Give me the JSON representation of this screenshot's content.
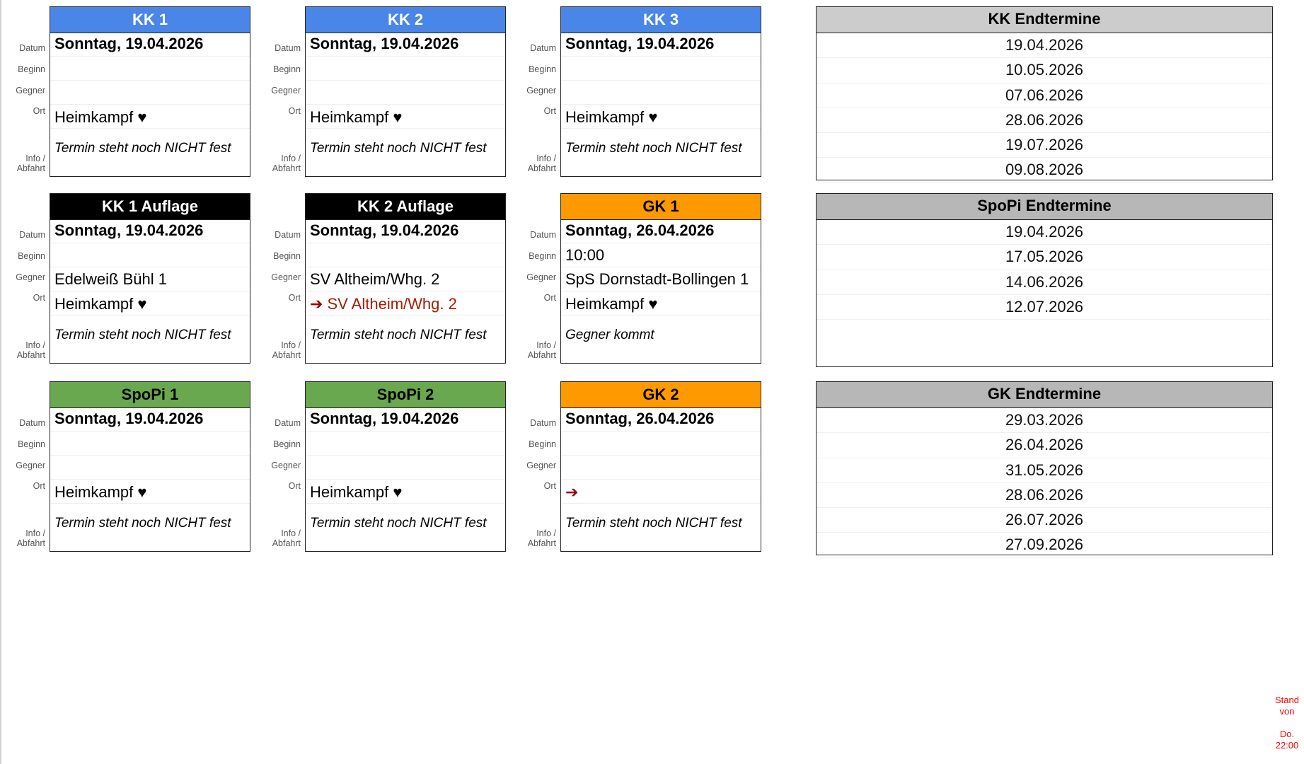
{
  "labels": {
    "datum": "Datum",
    "beginn": "Beginn",
    "gegner": "Gegner",
    "ort": "Ort",
    "info1": "Info /",
    "info2": "Abfahrt"
  },
  "colors": {
    "blue": "#4a86e8",
    "black": "#000000",
    "green": "#6aa84f",
    "orange": "#ff9900",
    "grey_light": "#cccccc",
    "grey": "#b7b7b7",
    "arrow_red": "#990000"
  },
  "cards": [
    {
      "title": "KK 1",
      "header_color": "blue",
      "datum": "Sonntag, 19.04.2026",
      "beginn": "",
      "gegner": "",
      "ort": "Heimkampf ♥",
      "ort_arrow": "",
      "info": "Termin steht noch NICHT fest"
    },
    {
      "title": "KK 2",
      "header_color": "blue",
      "datum": "Sonntag, 19.04.2026",
      "beginn": "",
      "gegner": "",
      "ort": "Heimkampf ♥",
      "ort_arrow": "",
      "info": "Termin steht noch NICHT fest"
    },
    {
      "title": "KK 3",
      "header_color": "blue",
      "datum": "Sonntag, 19.04.2026",
      "beginn": "",
      "gegner": "",
      "ort": "Heimkampf ♥",
      "ort_arrow": "",
      "info": "Termin steht noch NICHT fest"
    },
    {
      "title": "KK 1 Auflage",
      "header_color": "black",
      "datum": "Sonntag, 19.04.2026",
      "beginn": "",
      "gegner": "Edelweiß Bühl 1",
      "ort": "Heimkampf ♥",
      "ort_arrow": "",
      "info": "Termin steht noch NICHT fest"
    },
    {
      "title": "KK 2 Auflage",
      "header_color": "black",
      "datum": "Sonntag, 19.04.2026",
      "beginn": "",
      "gegner": "SV Altheim/Whg. 2",
      "ort": "SV Altheim/Whg. 2",
      "ort_arrow": "➔",
      "info": "Termin steht noch NICHT fest"
    },
    {
      "title": "GK 1",
      "header_color": "orange",
      "datum": "Sonntag, 26.04.2026",
      "beginn": "10:00",
      "gegner": "SpS Dornstadt-Bollingen 1",
      "ort": "Heimkampf ♥",
      "ort_arrow": "",
      "info": "Gegner kommt"
    },
    {
      "title": "SpoPi 1",
      "header_color": "green",
      "datum": "Sonntag, 19.04.2026",
      "beginn": "",
      "gegner": "",
      "ort": "Heimkampf ♥",
      "ort_arrow": "",
      "info": "Termin steht noch NICHT fest"
    },
    {
      "title": "SpoPi 2",
      "header_color": "green",
      "datum": "Sonntag, 19.04.2026",
      "beginn": "",
      "gegner": "",
      "ort": "Heimkampf ♥",
      "ort_arrow": "",
      "info": "Termin steht noch NICHT fest"
    },
    {
      "title": "GK 2",
      "header_color": "orange",
      "datum": "Sonntag, 26.04.2026",
      "beginn": "",
      "gegner": "",
      "ort": "",
      "ort_arrow": "➔",
      "info": "Termin steht noch NICHT fest"
    }
  ],
  "endtermine": [
    {
      "title": "KK Endtermine",
      "header_color": "grey_light",
      "dates": [
        "19.04.2026",
        "10.05.2026",
        "07.06.2026",
        "28.06.2026",
        "19.07.2026",
        "09.08.2026"
      ]
    },
    {
      "title": "SpoPi Endtermine",
      "header_color": "grey",
      "dates": [
        "19.04.2026",
        "17.05.2026",
        "14.06.2026",
        "12.07.2026"
      ]
    },
    {
      "title": "GK Endtermine",
      "header_color": "grey",
      "dates": [
        "29.03.2026",
        "26.04.2026",
        "31.05.2026",
        "28.06.2026",
        "26.07.2026",
        "27.09.2026"
      ]
    }
  ],
  "stand": {
    "line1": "Stand",
    "line2": "von",
    "line3": "Do.",
    "line4": "22:00"
  }
}
